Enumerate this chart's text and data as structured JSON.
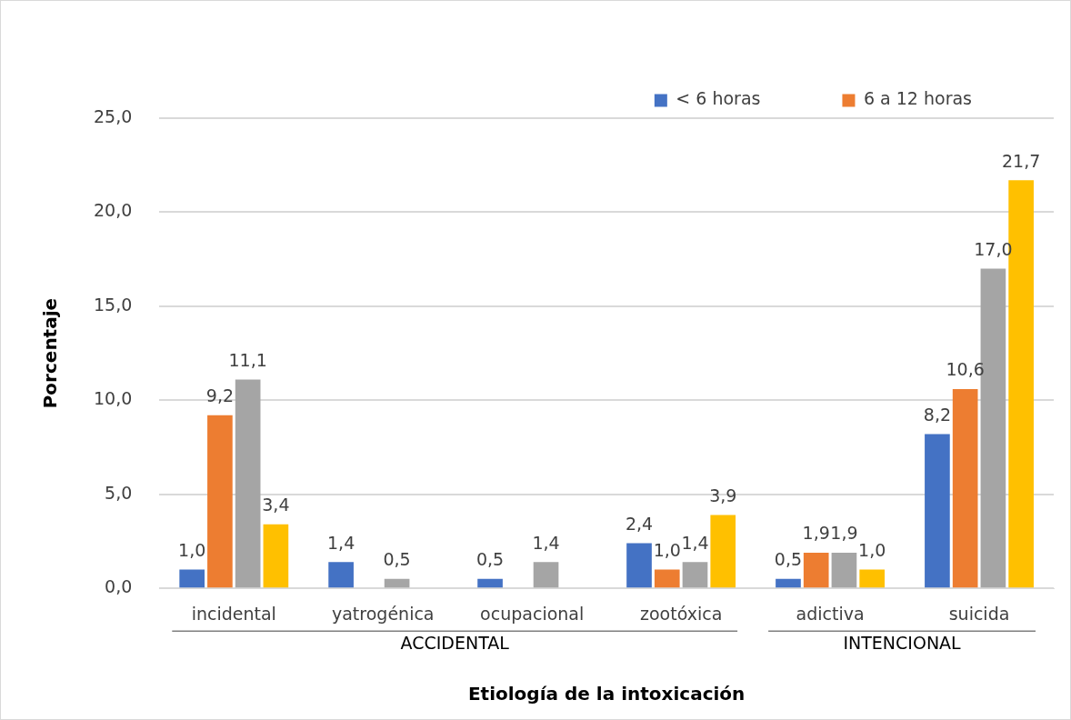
{
  "chart_data": {
    "type": "bar",
    "xlabel": "Etiología de la intoxicación",
    "ylabel": "Porcentaje",
    "categories": [
      "incidental",
      "yatrogénica",
      "ocupacional",
      "zootóxica",
      "adictiva",
      "suicida"
    ],
    "series": [
      {
        "name": "< 6 horas",
        "color": "#4472c4",
        "values": [
          1.0,
          1.4,
          0.5,
          2.4,
          0.5,
          8.2
        ],
        "value_labels": [
          "1,0",
          "1,4",
          "0,5",
          "2,4",
          "0,5",
          "8,2"
        ]
      },
      {
        "name": "6 a 12 horas",
        "color": "#ed7d31",
        "values": [
          9.2,
          null,
          null,
          1.0,
          1.9,
          10.6
        ],
        "value_labels": [
          "9,2",
          null,
          null,
          "1,0",
          "1,9",
          "10,6"
        ]
      },
      {
        "color": "#a5a5a5",
        "values": [
          11.1,
          0.5,
          1.4,
          1.4,
          1.9,
          17.0
        ],
        "value_labels": [
          "11,1",
          "0,5",
          "1,4",
          "1,4",
          "1,9",
          "17,0"
        ]
      },
      {
        "color": "#ffc000",
        "values": [
          3.4,
          null,
          null,
          3.9,
          1.0,
          21.7
        ],
        "value_labels": [
          "3,4",
          null,
          null,
          "3,9",
          "1,0",
          "21,7"
        ]
      }
    ],
    "ylim": [
      0,
      25
    ],
    "yticks": [
      {
        "value": 0,
        "label": "0,0"
      },
      {
        "value": 5,
        "label": "5,0"
      },
      {
        "value": 10,
        "label": "10,0"
      },
      {
        "value": 15,
        "label": "15,0"
      },
      {
        "value": 20,
        "label": "20,0"
      },
      {
        "value": 25,
        "label": "25,0"
      }
    ],
    "annotations": [
      "ACCIDENTAL",
      "INTENCIONAL"
    ],
    "grid": "y",
    "legend": "top right"
  }
}
